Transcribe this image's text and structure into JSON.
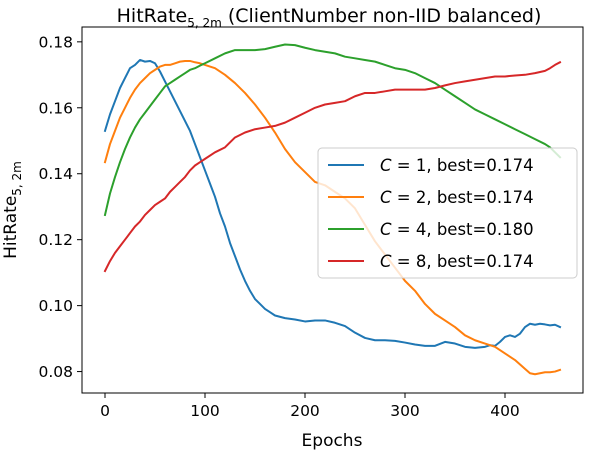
{
  "chart_data": {
    "type": "line",
    "title": {
      "main": "HitRate",
      "subscript": "5, 2m",
      "suffix": " (ClientNumber non-IID balanced)"
    },
    "xlabel": "Epochs",
    "ylabel": {
      "main": "HitRate",
      "subscript": "5, 2m"
    },
    "xlim": [
      -23,
      478
    ],
    "ylim": [
      0.0735,
      0.1845
    ],
    "x_ticks": [
      0,
      100,
      200,
      300,
      400
    ],
    "x_tick_labels": [
      "0",
      "100",
      "200",
      "300",
      "400"
    ],
    "y_ticks": [
      0.08,
      0.1,
      0.12,
      0.14,
      0.16,
      0.18
    ],
    "y_tick_labels": [
      "0.08",
      "0.10",
      "0.12",
      "0.14",
      "0.16",
      "0.18"
    ],
    "grid": false,
    "legend_position": "center-right",
    "series": [
      {
        "name": "C = 1, best=0.174",
        "legend_var": "C",
        "legend_rest": " = 1, best=0.174",
        "color": "#1f77b4",
        "points": [
          [
            0,
            0.153
          ],
          [
            5,
            0.158
          ],
          [
            10,
            0.162
          ],
          [
            15,
            0.166
          ],
          [
            20,
            0.169
          ],
          [
            25,
            0.172
          ],
          [
            30,
            0.173
          ],
          [
            35,
            0.1745
          ],
          [
            40,
            0.174
          ],
          [
            45,
            0.1742
          ],
          [
            50,
            0.1735
          ],
          [
            55,
            0.171
          ],
          [
            60,
            0.168
          ],
          [
            65,
            0.165
          ],
          [
            70,
            0.162
          ],
          [
            75,
            0.159
          ],
          [
            80,
            0.156
          ],
          [
            85,
            0.153
          ],
          [
            90,
            0.149
          ],
          [
            95,
            0.145
          ],
          [
            100,
            0.141
          ],
          [
            105,
            0.137
          ],
          [
            110,
            0.133
          ],
          [
            115,
            0.128
          ],
          [
            120,
            0.124
          ],
          [
            125,
            0.119
          ],
          [
            130,
            0.115
          ],
          [
            135,
            0.111
          ],
          [
            140,
            0.1075
          ],
          [
            145,
            0.1045
          ],
          [
            150,
            0.102
          ],
          [
            155,
            0.1005
          ],
          [
            160,
            0.099
          ],
          [
            165,
            0.098
          ],
          [
            170,
            0.097
          ],
          [
            180,
            0.0962
          ],
          [
            190,
            0.0958
          ],
          [
            200,
            0.0952
          ],
          [
            210,
            0.0955
          ],
          [
            220,
            0.0955
          ],
          [
            230,
            0.0948
          ],
          [
            240,
            0.0938
          ],
          [
            250,
            0.0918
          ],
          [
            260,
            0.0902
          ],
          [
            270,
            0.0895
          ],
          [
            280,
            0.0895
          ],
          [
            290,
            0.0893
          ],
          [
            300,
            0.0888
          ],
          [
            310,
            0.0882
          ],
          [
            320,
            0.0878
          ],
          [
            330,
            0.0878
          ],
          [
            340,
            0.089
          ],
          [
            350,
            0.0885
          ],
          [
            360,
            0.0875
          ],
          [
            370,
            0.0872
          ],
          [
            380,
            0.0875
          ],
          [
            385,
            0.088
          ],
          [
            390,
            0.0878
          ],
          [
            395,
            0.089
          ],
          [
            400,
            0.0905
          ],
          [
            405,
            0.091
          ],
          [
            410,
            0.0905
          ],
          [
            415,
            0.0915
          ],
          [
            420,
            0.0935
          ],
          [
            425,
            0.0945
          ],
          [
            430,
            0.0942
          ],
          [
            435,
            0.0945
          ],
          [
            440,
            0.0943
          ],
          [
            445,
            0.094
          ],
          [
            450,
            0.0942
          ],
          [
            455,
            0.0935
          ]
        ]
      },
      {
        "name": "C = 2, best=0.174",
        "legend_var": "C",
        "legend_rest": " = 2, best=0.174",
        "color": "#ff7f0e",
        "points": [
          [
            0,
            0.1435
          ],
          [
            5,
            0.149
          ],
          [
            10,
            0.153
          ],
          [
            15,
            0.157
          ],
          [
            20,
            0.16
          ],
          [
            25,
            0.163
          ],
          [
            30,
            0.1655
          ],
          [
            35,
            0.1675
          ],
          [
            40,
            0.169
          ],
          [
            45,
            0.1705
          ],
          [
            50,
            0.1715
          ],
          [
            55,
            0.1725
          ],
          [
            60,
            0.173
          ],
          [
            65,
            0.173
          ],
          [
            70,
            0.1735
          ],
          [
            75,
            0.174
          ],
          [
            80,
            0.1742
          ],
          [
            85,
            0.1742
          ],
          [
            90,
            0.1738
          ],
          [
            95,
            0.1735
          ],
          [
            100,
            0.173
          ],
          [
            110,
            0.172
          ],
          [
            120,
            0.17
          ],
          [
            130,
            0.1675
          ],
          [
            140,
            0.1645
          ],
          [
            150,
            0.161
          ],
          [
            160,
            0.157
          ],
          [
            170,
            0.1525
          ],
          [
            180,
            0.1475
          ],
          [
            190,
            0.1435
          ],
          [
            200,
            0.1405
          ],
          [
            210,
            0.1375
          ],
          [
            220,
            0.1365
          ],
          [
            230,
            0.1345
          ],
          [
            240,
            0.1325
          ],
          [
            250,
            0.1295
          ],
          [
            260,
            0.1245
          ],
          [
            270,
            0.1195
          ],
          [
            280,
            0.1155
          ],
          [
            290,
            0.1115
          ],
          [
            300,
            0.1075
          ],
          [
            310,
            0.1045
          ],
          [
            320,
            0.1005
          ],
          [
            330,
            0.0975
          ],
          [
            340,
            0.0955
          ],
          [
            350,
            0.0935
          ],
          [
            360,
            0.091
          ],
          [
            370,
            0.0895
          ],
          [
            380,
            0.0885
          ],
          [
            390,
            0.0875
          ],
          [
            400,
            0.0855
          ],
          [
            410,
            0.0835
          ],
          [
            420,
            0.0808
          ],
          [
            425,
            0.0795
          ],
          [
            430,
            0.0792
          ],
          [
            435,
            0.0795
          ],
          [
            440,
            0.0798
          ],
          [
            445,
            0.0798
          ],
          [
            450,
            0.08
          ],
          [
            455,
            0.0805
          ]
        ]
      },
      {
        "name": "C = 4, best=0.180",
        "legend_var": "C",
        "legend_rest": " = 4, best=0.180",
        "color": "#2ca02c",
        "points": [
          [
            0,
            0.1275
          ],
          [
            5,
            0.134
          ],
          [
            10,
            0.139
          ],
          [
            15,
            0.1435
          ],
          [
            20,
            0.1475
          ],
          [
            25,
            0.151
          ],
          [
            30,
            0.154
          ],
          [
            35,
            0.1565
          ],
          [
            40,
            0.1585
          ],
          [
            45,
            0.1605
          ],
          [
            50,
            0.1625
          ],
          [
            55,
            0.1645
          ],
          [
            60,
            0.1665
          ],
          [
            65,
            0.1675
          ],
          [
            70,
            0.1685
          ],
          [
            75,
            0.1695
          ],
          [
            80,
            0.1705
          ],
          [
            85,
            0.1715
          ],
          [
            90,
            0.172
          ],
          [
            95,
            0.1728
          ],
          [
            100,
            0.1735
          ],
          [
            110,
            0.175
          ],
          [
            120,
            0.1765
          ],
          [
            130,
            0.1775
          ],
          [
            140,
            0.1775
          ],
          [
            150,
            0.1775
          ],
          [
            160,
            0.1778
          ],
          [
            170,
            0.1785
          ],
          [
            180,
            0.1792
          ],
          [
            190,
            0.179
          ],
          [
            200,
            0.1782
          ],
          [
            210,
            0.1775
          ],
          [
            220,
            0.177
          ],
          [
            230,
            0.1765
          ],
          [
            240,
            0.1755
          ],
          [
            250,
            0.175
          ],
          [
            260,
            0.1745
          ],
          [
            270,
            0.174
          ],
          [
            280,
            0.173
          ],
          [
            290,
            0.172
          ],
          [
            300,
            0.1715
          ],
          [
            310,
            0.1705
          ],
          [
            320,
            0.169
          ],
          [
            330,
            0.1675
          ],
          [
            340,
            0.1655
          ],
          [
            350,
            0.1635
          ],
          [
            360,
            0.1615
          ],
          [
            370,
            0.1595
          ],
          [
            380,
            0.158
          ],
          [
            390,
            0.1565
          ],
          [
            400,
            0.155
          ],
          [
            410,
            0.1535
          ],
          [
            420,
            0.152
          ],
          [
            430,
            0.1505
          ],
          [
            440,
            0.149
          ],
          [
            445,
            0.148
          ],
          [
            450,
            0.1465
          ],
          [
            455,
            0.145
          ]
        ]
      },
      {
        "name": "C = 8, best=0.174",
        "legend_var": "C",
        "legend_rest": " = 8, best=0.174",
        "color": "#d62728",
        "points": [
          [
            0,
            0.1105
          ],
          [
            5,
            0.1135
          ],
          [
            10,
            0.116
          ],
          [
            15,
            0.118
          ],
          [
            20,
            0.12
          ],
          [
            25,
            0.122
          ],
          [
            30,
            0.124
          ],
          [
            35,
            0.1255
          ],
          [
            40,
            0.1275
          ],
          [
            45,
            0.129
          ],
          [
            50,
            0.1305
          ],
          [
            55,
            0.1315
          ],
          [
            60,
            0.1325
          ],
          [
            65,
            0.1345
          ],
          [
            70,
            0.136
          ],
          [
            75,
            0.1375
          ],
          [
            80,
            0.139
          ],
          [
            85,
            0.141
          ],
          [
            90,
            0.1425
          ],
          [
            95,
            0.1435
          ],
          [
            100,
            0.1445
          ],
          [
            110,
            0.1465
          ],
          [
            120,
            0.148
          ],
          [
            130,
            0.151
          ],
          [
            140,
            0.1525
          ],
          [
            150,
            0.1535
          ],
          [
            160,
            0.154
          ],
          [
            170,
            0.1545
          ],
          [
            180,
            0.1555
          ],
          [
            190,
            0.157
          ],
          [
            200,
            0.1585
          ],
          [
            210,
            0.16
          ],
          [
            220,
            0.161
          ],
          [
            230,
            0.1615
          ],
          [
            240,
            0.162
          ],
          [
            250,
            0.1635
          ],
          [
            260,
            0.1645
          ],
          [
            270,
            0.1645
          ],
          [
            280,
            0.165
          ],
          [
            290,
            0.1655
          ],
          [
            300,
            0.1655
          ],
          [
            310,
            0.1655
          ],
          [
            320,
            0.1655
          ],
          [
            330,
            0.166
          ],
          [
            340,
            0.1668
          ],
          [
            350,
            0.1675
          ],
          [
            360,
            0.168
          ],
          [
            370,
            0.1685
          ],
          [
            380,
            0.169
          ],
          [
            390,
            0.1695
          ],
          [
            400,
            0.1695
          ],
          [
            410,
            0.1698
          ],
          [
            420,
            0.17
          ],
          [
            430,
            0.1705
          ],
          [
            440,
            0.1712
          ],
          [
            445,
            0.172
          ],
          [
            450,
            0.173
          ],
          [
            455,
            0.1738
          ]
        ]
      }
    ]
  }
}
